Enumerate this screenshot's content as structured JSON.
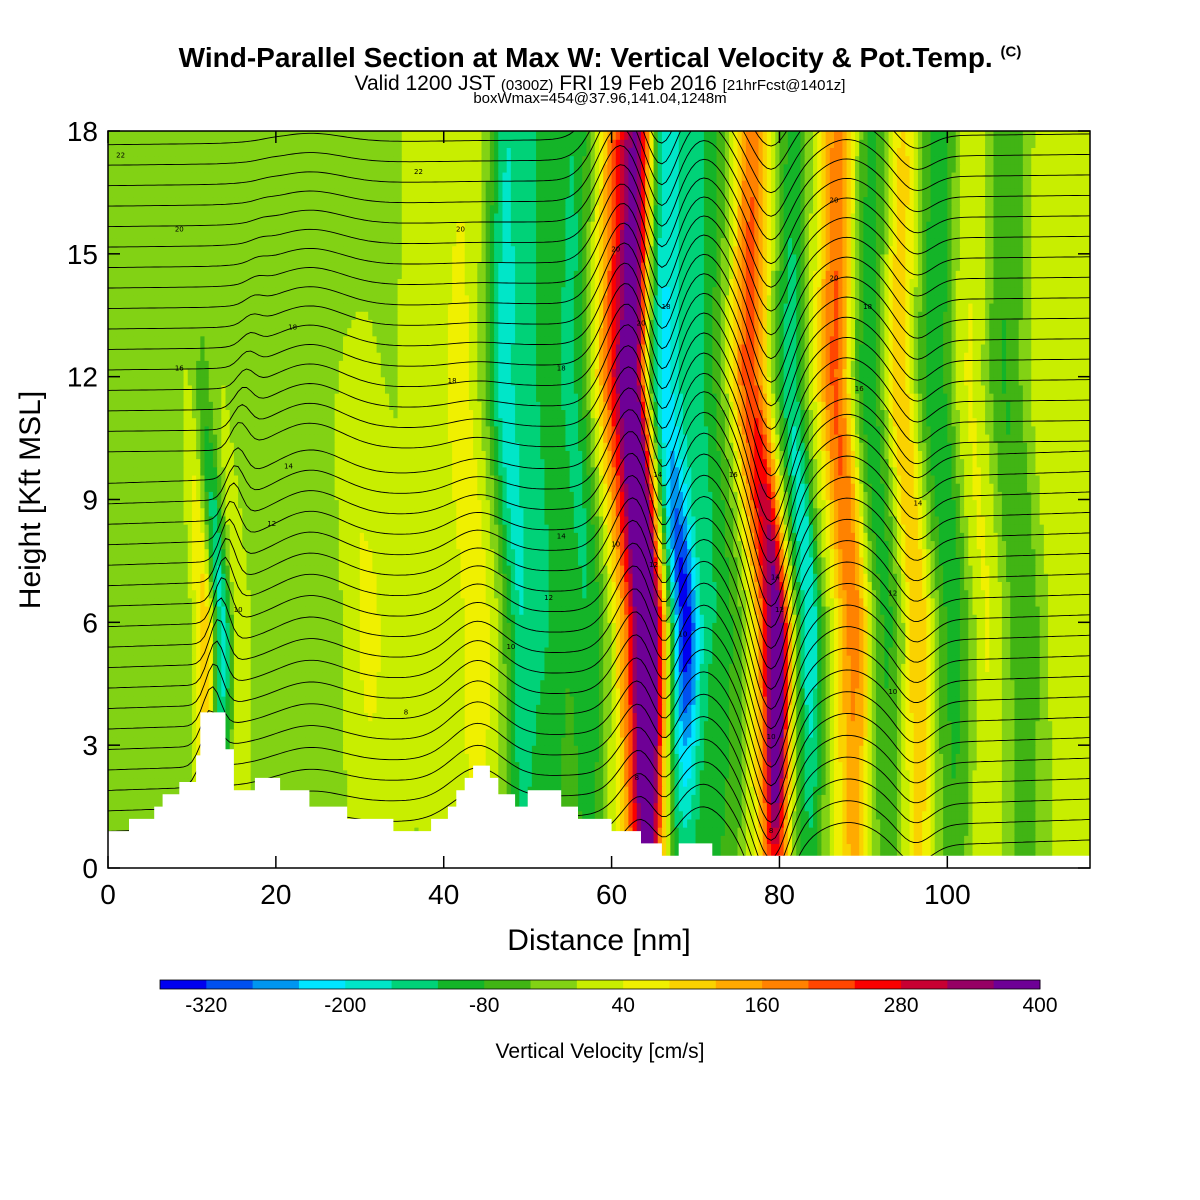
{
  "header": {
    "title_main": "Wind-Parallel Section at Max W: Vertical Velocity & Pot.Temp.",
    "title_copyright": "(C)",
    "valid_prefix": "Valid 1200 JST",
    "valid_utc": "(0300Z)",
    "valid_date": "FRI 19 Feb 2016",
    "forecast": "[21hrFcst@1401z]",
    "box_info": "boxWmax=454@37.96,141.04,1248m"
  },
  "chart_data": {
    "type": "heatmap",
    "xlabel": "Distance [nm]",
    "ylabel": "Height [Kft MSL]",
    "xlim": [
      0,
      117
    ],
    "ylim": [
      0,
      18
    ],
    "x_ticks": [
      0,
      20,
      40,
      60,
      80,
      100
    ],
    "y_ticks": [
      0,
      3,
      6,
      9,
      12,
      15,
      18
    ],
    "colorbar": {
      "title": "Vertical Velocity [cm/s]",
      "min": -360,
      "step": 40,
      "labels": [
        "-320",
        "-200",
        "-80",
        "40",
        "160",
        "280",
        "400"
      ],
      "colors": [
        "#0000f0",
        "#0050f0",
        "#0096f0",
        "#00e6ff",
        "#00e6c8",
        "#00d278",
        "#14b428",
        "#41b414",
        "#82d214",
        "#c8ee00",
        "#f0f000",
        "#fad200",
        "#ffaa00",
        "#ff8200",
        "#ff4600",
        "#fa0000",
        "#c80032",
        "#960064",
        "#6e0096"
      ]
    },
    "updraft_cores": [
      {
        "x_nm": 65,
        "peak_cms": 400
      },
      {
        "x_nm": 80,
        "peak_cms": 454
      },
      {
        "x_nm": 89,
        "peak_cms": 240
      }
    ],
    "downdraft_cores": [
      {
        "x_nm": 13.5,
        "peak_cms": -240
      },
      {
        "x_nm": 69,
        "peak_cms": -320
      },
      {
        "x_nm": 84,
        "peak_cms": -160
      }
    ],
    "contour_labels": [
      {
        "text": "22",
        "x": 1.5,
        "y": 17.4
      },
      {
        "text": "22",
        "x": 37,
        "y": 17.0
      },
      {
        "text": "20",
        "x": 8.5,
        "y": 15.6
      },
      {
        "text": "20",
        "x": 42,
        "y": 15.6
      },
      {
        "text": "20",
        "x": 60.5,
        "y": 15.1
      },
      {
        "text": "20",
        "x": 86.5,
        "y": 16.3
      },
      {
        "text": "20",
        "x": 63.5,
        "y": 13.3
      },
      {
        "text": "18",
        "x": 66.5,
        "y": 13.7
      },
      {
        "text": "20",
        "x": 86.5,
        "y": 14.4
      },
      {
        "text": "18",
        "x": 22,
        "y": 13.2
      },
      {
        "text": "18",
        "x": 41,
        "y": 11.9
      },
      {
        "text": "18",
        "x": 54,
        "y": 12.2
      },
      {
        "text": "18",
        "x": 90.5,
        "y": 13.7
      },
      {
        "text": "16",
        "x": 8.5,
        "y": 12.2
      },
      {
        "text": "16",
        "x": 89.5,
        "y": 11.7
      },
      {
        "text": "16",
        "x": 74.5,
        "y": 9.6
      },
      {
        "text": "14",
        "x": 21.5,
        "y": 9.8
      },
      {
        "text": "14",
        "x": 65.5,
        "y": 9.6
      },
      {
        "text": "14",
        "x": 54,
        "y": 8.1
      },
      {
        "text": "14",
        "x": 96.5,
        "y": 8.9
      },
      {
        "text": "14",
        "x": 79.5,
        "y": 7.1
      },
      {
        "text": "12",
        "x": 19.5,
        "y": 8.4
      },
      {
        "text": "12",
        "x": 65,
        "y": 7.4
      },
      {
        "text": "12",
        "x": 52.5,
        "y": 6.6
      },
      {
        "text": "12",
        "x": 80,
        "y": 6.3
      },
      {
        "text": "12",
        "x": 93.5,
        "y": 6.7
      },
      {
        "text": "10",
        "x": 60.5,
        "y": 7.9
      },
      {
        "text": "10",
        "x": 15.5,
        "y": 6.3
      },
      {
        "text": "10",
        "x": 48,
        "y": 5.4
      },
      {
        "text": "10",
        "x": 68.5,
        "y": 5.7
      },
      {
        "text": "10",
        "x": 93.5,
        "y": 4.3
      },
      {
        "text": "10",
        "x": 79,
        "y": 3.2
      },
      {
        "text": "8",
        "x": 35.5,
        "y": 3.8
      },
      {
        "text": "8",
        "x": 63,
        "y": 2.2
      },
      {
        "text": "8",
        "x": 79,
        "y": 0.9
      }
    ]
  }
}
